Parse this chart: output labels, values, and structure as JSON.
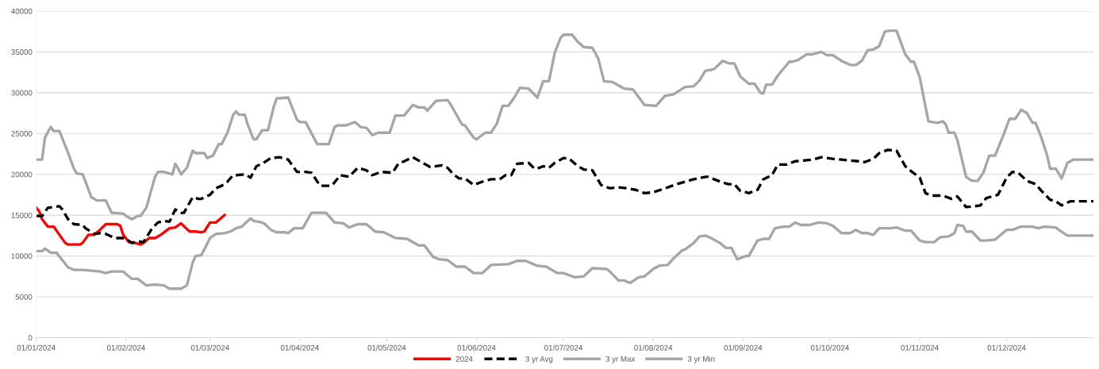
{
  "chart_data": {
    "type": "line",
    "xlim": [
      "2024-01-01",
      "2024-12-31"
    ],
    "ylim": [
      0,
      40000
    ],
    "xticks": [
      {
        "value": "2024-01-01",
        "label": "01/01/2024"
      },
      {
        "value": "2024-02-01",
        "label": "01/02/2024"
      },
      {
        "value": "2024-03-01",
        "label": "01/03/2024"
      },
      {
        "value": "2024-04-01",
        "label": "01/04/2024"
      },
      {
        "value": "2024-05-01",
        "label": "01/05/2024"
      },
      {
        "value": "2024-06-01",
        "label": "01/06/2024"
      },
      {
        "value": "2024-07-01",
        "label": "01/07/2024"
      },
      {
        "value": "2024-08-01",
        "label": "01/08/2024"
      },
      {
        "value": "2024-09-01",
        "label": "01/09/2024"
      },
      {
        "value": "2024-10-01",
        "label": "01/10/2024"
      },
      {
        "value": "2024-11-01",
        "label": "01/11/2024"
      },
      {
        "value": "2024-12-01",
        "label": "01/12/2024"
      }
    ],
    "yticks": [
      0,
      5000,
      10000,
      15000,
      20000,
      25000,
      30000,
      35000,
      40000
    ],
    "grid": "y",
    "legend": "bottom",
    "marker": "none",
    "series": [
      {
        "name": "2024",
        "color": "#ff0000",
        "line_style": "solid",
        "x": [
          "2024-01-01",
          "2024-01-02",
          "2024-01-03",
          "2024-01-05",
          "2024-01-07",
          "2024-01-09",
          "2024-01-11",
          "2024-01-12",
          "2024-01-16",
          "2024-01-17",
          "2024-01-19",
          "2024-01-21",
          "2024-01-23",
          "2024-01-25",
          "2024-01-29",
          "2024-01-30",
          "2024-01-31",
          "2024-02-02",
          "2024-02-04",
          "2024-02-06",
          "2024-02-07",
          "2024-02-09",
          "2024-02-11",
          "2024-02-13",
          "2024-02-16",
          "2024-02-18",
          "2024-02-20",
          "2024-02-22",
          "2024-02-23",
          "2024-02-25",
          "2024-02-27",
          "2024-02-28",
          "2024-03-01",
          "2024-03-03",
          "2024-03-06"
        ],
        "values": [
          15900,
          15500,
          14500,
          13600,
          13600,
          12600,
          11600,
          11400,
          11400,
          11600,
          12600,
          12600,
          13200,
          13900,
          13900,
          13700,
          12600,
          11700,
          11600,
          11400,
          11600,
          12200,
          12200,
          12600,
          13400,
          13500,
          14000,
          13300,
          13000,
          13000,
          12900,
          13000,
          14100,
          14100,
          15000
        ]
      },
      {
        "name": "3 yr Avg",
        "color": "#000000",
        "line_style": "dashed",
        "x": [
          "2024-01-01",
          "2024-01-03",
          "2024-01-05",
          "2024-01-07",
          "2024-01-09",
          "2024-01-10",
          "2024-01-12",
          "2024-01-14",
          "2024-01-17",
          "2024-01-18",
          "2024-01-21",
          "2024-01-23",
          "2024-01-25",
          "2024-01-28",
          "2024-01-31",
          "2024-02-01",
          "2024-02-03",
          "2024-02-05",
          "2024-02-07",
          "2024-02-10",
          "2024-02-12",
          "2024-02-14",
          "2024-02-16",
          "2024-02-18",
          "2024-02-20",
          "2024-02-21",
          "2024-02-24",
          "2024-02-26",
          "2024-02-27",
          "2024-03-01",
          "2024-03-03",
          "2024-03-05",
          "2024-03-07",
          "2024-03-09",
          "2024-03-10",
          "2024-03-13",
          "2024-03-15",
          "2024-03-17",
          "2024-03-19",
          "2024-03-22",
          "2024-03-25",
          "2024-03-28",
          "2024-03-31",
          "2024-04-03",
          "2024-04-05",
          "2024-04-08",
          "2024-04-12",
          "2024-04-15",
          "2024-04-18",
          "2024-04-21",
          "2024-04-24",
          "2024-04-26",
          "2024-04-29",
          "2024-05-03",
          "2024-05-05",
          "2024-05-07",
          "2024-05-10",
          "2024-05-14",
          "2024-05-16",
          "2024-05-20",
          "2024-05-22",
          "2024-05-24",
          "2024-05-26",
          "2024-05-28",
          "2024-05-31",
          "2024-06-03",
          "2024-06-06",
          "2024-06-09",
          "2024-06-11",
          "2024-06-13",
          "2024-06-15",
          "2024-06-19",
          "2024-06-21",
          "2024-06-22",
          "2024-06-24",
          "2024-06-26",
          "2024-06-28",
          "2024-07-01",
          "2024-07-03",
          "2024-07-06",
          "2024-07-08",
          "2024-07-11",
          "2024-07-14",
          "2024-07-17",
          "2024-07-20",
          "2024-07-23",
          "2024-07-26",
          "2024-07-29",
          "2024-08-01",
          "2024-08-06",
          "2024-08-09",
          "2024-08-12",
          "2024-08-15",
          "2024-08-19",
          "2024-08-20",
          "2024-08-22",
          "2024-08-25",
          "2024-08-27",
          "2024-08-29",
          "2024-08-31",
          "2024-09-03",
          "2024-09-06",
          "2024-09-08",
          "2024-09-11",
          "2024-09-13",
          "2024-09-16",
          "2024-09-19",
          "2024-09-25",
          "2024-09-28",
          "2024-10-02",
          "2024-10-05",
          "2024-10-08",
          "2024-10-11",
          "2024-10-13",
          "2024-10-16",
          "2024-10-18",
          "2024-10-21",
          "2024-10-24",
          "2024-10-27",
          "2024-10-29",
          "2024-11-01",
          "2024-11-03",
          "2024-11-05",
          "2024-11-09",
          "2024-11-12",
          "2024-11-14",
          "2024-11-17",
          "2024-11-20",
          "2024-11-22",
          "2024-11-24",
          "2024-11-28",
          "2024-12-01",
          "2024-12-03",
          "2024-12-05",
          "2024-12-08",
          "2024-12-11",
          "2024-12-13",
          "2024-12-16",
          "2024-12-18",
          "2024-12-20",
          "2024-12-23",
          "2024-12-31"
        ],
        "values": [
          14900,
          14900,
          15900,
          16000,
          16100,
          15700,
          14500,
          13900,
          13800,
          13400,
          12700,
          12800,
          12700,
          12200,
          12200,
          12100,
          11600,
          11800,
          11700,
          13400,
          14100,
          14300,
          14200,
          15700,
          15300,
          15300,
          17200,
          17000,
          17000,
          17500,
          18300,
          18600,
          19100,
          19900,
          19900,
          20000,
          19600,
          21000,
          21300,
          22000,
          22100,
          21800,
          20300,
          20300,
          20200,
          18600,
          18600,
          19900,
          19700,
          20800,
          20500,
          19900,
          20300,
          20200,
          21300,
          21600,
          22100,
          21300,
          20900,
          21100,
          20800,
          20000,
          19500,
          19500,
          18700,
          19100,
          19400,
          19400,
          19900,
          19900,
          21300,
          21400,
          20700,
          20700,
          21000,
          20800,
          21400,
          22000,
          21900,
          21000,
          20600,
          20500,
          18700,
          18300,
          18400,
          18300,
          18100,
          17700,
          17800,
          18400,
          18800,
          19100,
          19400,
          19700,
          19700,
          19400,
          19000,
          18800,
          18800,
          18000,
          17700,
          18100,
          19400,
          19900,
          21200,
          21200,
          21600,
          21800,
          22100,
          21900,
          21800,
          21700,
          21600,
          21500,
          21900,
          22600,
          23000,
          22900,
          21000,
          20400,
          19600,
          17700,
          17400,
          17400,
          17000,
          17300,
          16000,
          16100,
          16200,
          17100,
          17500,
          19600,
          20300,
          20200,
          19200,
          18800,
          18000,
          16900,
          16700,
          16200,
          16700,
          16700
        ]
      },
      {
        "name": "3 yr Max",
        "color": "#a6a6a6",
        "line_style": "solid",
        "x": [
          "2024-01-01",
          "2024-01-03",
          "2024-01-04",
          "2024-01-06",
          "2024-01-07",
          "2024-01-09",
          "2024-01-12",
          "2024-01-14",
          "2024-01-15",
          "2024-01-17",
          "2024-01-18",
          "2024-01-20",
          "2024-01-22",
          "2024-01-25",
          "2024-01-27",
          "2024-01-31",
          "2024-02-01",
          "2024-02-03",
          "2024-02-05",
          "2024-02-06",
          "2024-02-08",
          "2024-02-11",
          "2024-02-12",
          "2024-02-14",
          "2024-02-17",
          "2024-02-18",
          "2024-02-19",
          "2024-02-20",
          "2024-02-22",
          "2024-02-24",
          "2024-02-25",
          "2024-02-28",
          "2024-02-29",
          "2024-03-02",
          "2024-03-04",
          "2024-03-05",
          "2024-03-07",
          "2024-03-09",
          "2024-03-10",
          "2024-03-11",
          "2024-03-13",
          "2024-03-14",
          "2024-03-16",
          "2024-03-17",
          "2024-03-19",
          "2024-03-21",
          "2024-03-23",
          "2024-03-24",
          "2024-03-28",
          "2024-03-31",
          "2024-04-01",
          "2024-04-03",
          "2024-04-07",
          "2024-04-11",
          "2024-04-13",
          "2024-04-14",
          "2024-04-17",
          "2024-04-20",
          "2024-04-22",
          "2024-04-24",
          "2024-04-26",
          "2024-04-28",
          "2024-05-02",
          "2024-05-04",
          "2024-05-07",
          "2024-05-10",
          "2024-05-12",
          "2024-05-14",
          "2024-05-15",
          "2024-05-18",
          "2024-05-22",
          "2024-05-23",
          "2024-05-27",
          "2024-05-28",
          "2024-05-31",
          "2024-06-01",
          "2024-06-04",
          "2024-06-06",
          "2024-06-08",
          "2024-06-10",
          "2024-06-12",
          "2024-06-14",
          "2024-06-16",
          "2024-06-19",
          "2024-06-22",
          "2024-06-24",
          "2024-06-26",
          "2024-06-28",
          "2024-06-30",
          "2024-07-01",
          "2024-07-04",
          "2024-07-06",
          "2024-07-08",
          "2024-07-11",
          "2024-07-13",
          "2024-07-15",
          "2024-07-18",
          "2024-07-22",
          "2024-07-25",
          "2024-07-29",
          "2024-08-02",
          "2024-08-05",
          "2024-08-08",
          "2024-08-12",
          "2024-08-15",
          "2024-08-17",
          "2024-08-19",
          "2024-08-21",
          "2024-08-22",
          "2024-08-25",
          "2024-08-27",
          "2024-08-29",
          "2024-08-31",
          "2024-09-03",
          "2024-09-05",
          "2024-09-07",
          "2024-09-08",
          "2024-09-09",
          "2024-09-11",
          "2024-09-13",
          "2024-09-17",
          "2024-09-18",
          "2024-09-20",
          "2024-09-23",
          "2024-09-25",
          "2024-09-28",
          "2024-09-30",
          "2024-10-02",
          "2024-10-05",
          "2024-10-08",
          "2024-10-10",
          "2024-10-12",
          "2024-10-14",
          "2024-10-16",
          "2024-10-18",
          "2024-10-20",
          "2024-10-22",
          "2024-10-24",
          "2024-10-27",
          "2024-10-29",
          "2024-10-30",
          "2024-11-01",
          "2024-11-03",
          "2024-11-04",
          "2024-11-07",
          "2024-11-09",
          "2024-11-10",
          "2024-11-11",
          "2024-11-13",
          "2024-11-14",
          "2024-11-17",
          "2024-11-19",
          "2024-11-21",
          "2024-11-23",
          "2024-11-25",
          "2024-11-27",
          "2024-11-30",
          "2024-12-02",
          "2024-12-04",
          "2024-12-06",
          "2024-12-08",
          "2024-12-10",
          "2024-12-11",
          "2024-12-13",
          "2024-12-15",
          "2024-12-16",
          "2024-12-18",
          "2024-12-20",
          "2024-12-22",
          "2024-12-24",
          "2024-12-31"
        ],
        "values": [
          21800,
          21800,
          24500,
          25800,
          25300,
          25300,
          22600,
          20700,
          20100,
          20000,
          19100,
          17200,
          16800,
          16800,
          15300,
          15200,
          14900,
          14500,
          14900,
          14900,
          15900,
          19700,
          20300,
          20300,
          20000,
          21300,
          20700,
          20000,
          20800,
          22900,
          22600,
          22600,
          22000,
          22300,
          23700,
          23700,
          25100,
          27300,
          27700,
          27300,
          27300,
          26100,
          24300,
          24300,
          25400,
          25400,
          28300,
          29300,
          29400,
          26700,
          26400,
          26400,
          23700,
          23700,
          25800,
          26000,
          26000,
          26400,
          25800,
          25700,
          24800,
          25100,
          25100,
          27200,
          27200,
          28500,
          28200,
          28200,
          27800,
          29000,
          29100,
          28600,
          26100,
          26000,
          24500,
          24300,
          25100,
          25100,
          26200,
          28400,
          28400,
          29400,
          30600,
          30500,
          29400,
          31400,
          31400,
          34900,
          36700,
          37100,
          37100,
          36200,
          35600,
          35500,
          34200,
          31400,
          31300,
          30500,
          30400,
          28500,
          28400,
          29600,
          29800,
          30700,
          30800,
          31500,
          32700,
          32800,
          32900,
          33900,
          33600,
          33600,
          32000,
          31100,
          31100,
          30000,
          29900,
          31000,
          31000,
          32100,
          33800,
          33800,
          34000,
          34700,
          34700,
          35000,
          34600,
          34600,
          33900,
          33400,
          33400,
          33900,
          35200,
          35300,
          35700,
          37500,
          37600,
          37600,
          34700,
          33800,
          33800,
          31900,
          28300,
          26500,
          26300,
          26500,
          26100,
          25100,
          25100,
          24200,
          19700,
          19200,
          19200,
          20200,
          22300,
          22300,
          24900,
          26800,
          26800,
          27900,
          27500,
          26300,
          26300,
          24500,
          22300,
          20700,
          20700,
          19500,
          21400,
          21800,
          21800
        ]
      },
      {
        "name": "3 yr Min",
        "color": "#a6a6a6",
        "line_style": "solid",
        "x": [
          "2024-01-01",
          "2024-01-03",
          "2024-01-04",
          "2024-01-06",
          "2024-01-08",
          "2024-01-10",
          "2024-01-12",
          "2024-01-14",
          "2024-01-17",
          "2024-01-20",
          "2024-01-23",
          "2024-01-25",
          "2024-01-27",
          "2024-01-31",
          "2024-02-01",
          "2024-02-03",
          "2024-02-05",
          "2024-02-08",
          "2024-02-11",
          "2024-02-14",
          "2024-02-16",
          "2024-02-20",
          "2024-02-22",
          "2024-02-24",
          "2024-02-25",
          "2024-02-27",
          "2024-03-01",
          "2024-03-03",
          "2024-03-06",
          "2024-03-08",
          "2024-03-10",
          "2024-03-12",
          "2024-03-14",
          "2024-03-15",
          "2024-03-16",
          "2024-03-19",
          "2024-03-20",
          "2024-03-22",
          "2024-03-24",
          "2024-03-27",
          "2024-03-28",
          "2024-03-30",
          "2024-04-02",
          "2024-04-05",
          "2024-04-10",
          "2024-04-13",
          "2024-04-16",
          "2024-04-18",
          "2024-04-21",
          "2024-04-24",
          "2024-04-27",
          "2024-04-30",
          "2024-05-04",
          "2024-05-08",
          "2024-05-12",
          "2024-05-14",
          "2024-05-17",
          "2024-05-19",
          "2024-05-22",
          "2024-05-25",
          "2024-05-28",
          "2024-05-31",
          "2024-06-03",
          "2024-06-06",
          "2024-06-12",
          "2024-06-15",
          "2024-06-18",
          "2024-06-22",
          "2024-06-25",
          "2024-06-29",
          "2024-07-01",
          "2024-07-05",
          "2024-07-08",
          "2024-07-11",
          "2024-07-16",
          "2024-07-17",
          "2024-07-20",
          "2024-07-22",
          "2024-07-24",
          "2024-07-27",
          "2024-07-29",
          "2024-08-01",
          "2024-08-03",
          "2024-08-06",
          "2024-08-08",
          "2024-08-11",
          "2024-08-12",
          "2024-08-15",
          "2024-08-17",
          "2024-08-19",
          "2024-08-21",
          "2024-08-22",
          "2024-08-24",
          "2024-08-26",
          "2024-08-28",
          "2024-08-30",
          "2024-09-02",
          "2024-09-03",
          "2024-09-06",
          "2024-09-08",
          "2024-09-10",
          "2024-09-12",
          "2024-09-15",
          "2024-09-17",
          "2024-09-19",
          "2024-09-21",
          "2024-09-24",
          "2024-09-27",
          "2024-09-30",
          "2024-10-02",
          "2024-10-05",
          "2024-10-08",
          "2024-10-10",
          "2024-10-12",
          "2024-10-14",
          "2024-10-16",
          "2024-10-18",
          "2024-10-22",
          "2024-10-24",
          "2024-10-27",
          "2024-10-29",
          "2024-11-01",
          "2024-11-03",
          "2024-11-06",
          "2024-11-08",
          "2024-11-11",
          "2024-11-13",
          "2024-11-14",
          "2024-11-16",
          "2024-11-17",
          "2024-11-19",
          "2024-11-22",
          "2024-11-24",
          "2024-11-27",
          "2024-11-30",
          "2024-12-01",
          "2024-12-03",
          "2024-12-06",
          "2024-12-10",
          "2024-12-12",
          "2024-12-14",
          "2024-12-18",
          "2024-12-19",
          "2024-12-22",
          "2024-12-31"
        ],
        "values": [
          10600,
          10600,
          10900,
          10400,
          10400,
          9500,
          8600,
          8300,
          8300,
          8200,
          8100,
          7900,
          8100,
          8100,
          7800,
          7200,
          7200,
          6400,
          6500,
          6400,
          6000,
          6000,
          6400,
          9200,
          10000,
          10100,
          12200,
          12700,
          12800,
          13000,
          13400,
          13600,
          14300,
          14600,
          14300,
          14100,
          13900,
          13200,
          12900,
          12900,
          12800,
          13400,
          13400,
          15300,
          15300,
          14100,
          14000,
          13500,
          13900,
          13900,
          13000,
          12900,
          12200,
          12100,
          11300,
          11300,
          9900,
          9600,
          9500,
          8700,
          8700,
          7900,
          7900,
          8900,
          9000,
          9400,
          9400,
          8800,
          8700,
          7900,
          7900,
          7400,
          7500,
          8500,
          8400,
          8100,
          7000,
          7000,
          6700,
          7400,
          7500,
          8400,
          8800,
          8900,
          9700,
          10700,
          10800,
          11600,
          12400,
          12500,
          12200,
          12000,
          11600,
          11000,
          11000,
          9600,
          10000,
          10000,
          11900,
          12100,
          12100,
          13400,
          13600,
          13600,
          14100,
          13800,
          13800,
          14100,
          14000,
          13700,
          12800,
          12800,
          13200,
          12800,
          12800,
          12600,
          13400,
          13400,
          13500,
          13100,
          13100,
          11900,
          11700,
          11700,
          12300,
          12400,
          12800,
          13800,
          13700,
          13000,
          13000,
          11900,
          11900,
          12000,
          12900,
          13200,
          13200,
          13600,
          13600,
          13400,
          13600,
          13500,
          13200,
          12500,
          12500
        ]
      }
    ]
  }
}
